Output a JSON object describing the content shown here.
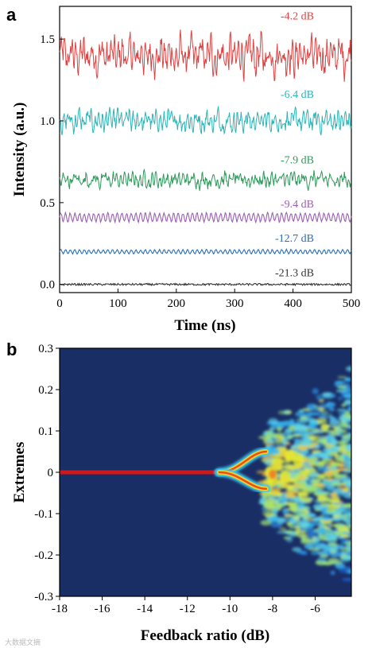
{
  "chart_data": [
    {
      "panel": "a",
      "type": "line",
      "xlabel": "Time (ns)",
      "ylabel": "Intensity (a.u.)",
      "xlim": [
        0,
        500
      ],
      "ylim": [
        -0.05,
        1.7
      ],
      "xticks": [
        "0",
        "100",
        "200",
        "300",
        "400",
        "500"
      ],
      "xtick_values": [
        0,
        100,
        200,
        300,
        400,
        500
      ],
      "yticks": [
        "0.0",
        "0.5",
        "1.0",
        "1.5"
      ],
      "ytick_values": [
        0.0,
        0.5,
        1.0,
        1.5
      ],
      "series": [
        {
          "name": "-4.2 dB",
          "color": "#e04040",
          "center": 1.4,
          "amplitude": 0.17,
          "pattern": "chaotic"
        },
        {
          "name": "-6.4 dB",
          "color": "#2bb5b8",
          "center": 1.0,
          "amplitude": 0.1,
          "pattern": "chaotic"
        },
        {
          "name": "-7.9 dB",
          "color": "#2e9a5a",
          "center": 0.64,
          "amplitude": 0.07,
          "pattern": "chaotic"
        },
        {
          "name": "-9.4 dB",
          "color": "#9b5fb5",
          "center": 0.41,
          "amplitude": 0.025,
          "pattern": "periodic"
        },
        {
          "name": "-12.7 dB",
          "color": "#2a6db5",
          "center": 0.2,
          "amplitude": 0.012,
          "pattern": "periodic"
        },
        {
          "name": "-21.3 dB",
          "color": "#333333",
          "center": 0.0,
          "amplitude": 0.006,
          "pattern": "noise"
        }
      ]
    },
    {
      "panel": "b",
      "type": "heatmap",
      "xlabel": "Feedback ratio (dB)",
      "ylabel": "Extremes",
      "xlim": [
        -18,
        -4.3
      ],
      "ylim": [
        -0.3,
        0.3
      ],
      "xticks": [
        "-18",
        "-16",
        "-14",
        "-12",
        "-10",
        "-8",
        "-6"
      ],
      "xtick_values": [
        -18,
        -16,
        -14,
        -12,
        -10,
        -8,
        -6
      ],
      "yticks": [
        "-0.3",
        "-0.2",
        "-0.1",
        "0",
        "0.1",
        "0.2",
        "0.3"
      ],
      "ytick_values": [
        -0.3,
        -0.2,
        -0.1,
        0,
        0.1,
        0.2,
        0.3
      ],
      "colormap": "jet",
      "background_color": "#1a2e66",
      "features": {
        "stable_branch": {
          "x": [
            -18,
            -10.5
          ],
          "y": 0.0
        },
        "period_one_upper": {
          "x": [
            -10.5,
            -8.3
          ],
          "y_start": 0.0,
          "y_end": 0.05
        },
        "period_one_lower": {
          "x": [
            -10.5,
            -8.3
          ],
          "y_start": 0.0,
          "y_end": -0.04
        },
        "chaotic_region": {
          "x": [
            -8.5,
            -4.3
          ],
          "y_range": [
            -0.28,
            0.25
          ]
        }
      }
    }
  ],
  "panel_labels": [
    "a",
    "b"
  ],
  "watermark": "大数据文摘"
}
